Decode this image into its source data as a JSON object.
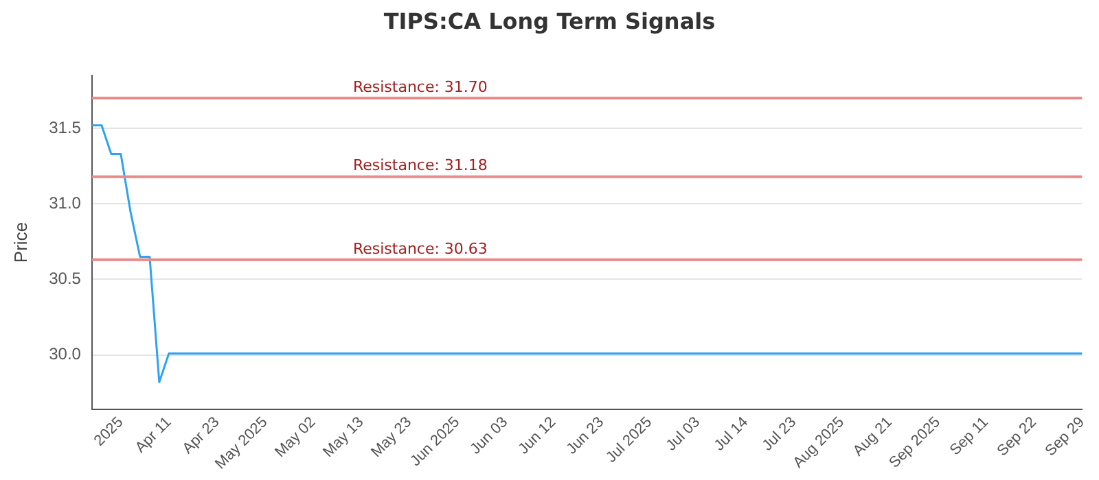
{
  "chart_data": {
    "type": "line",
    "title": "TIPS:CA Long Term Signals",
    "ylabel": "Price",
    "categories": [
      null,
      null,
      null,
      "2025",
      null,
      null,
      null,
      null,
      "Apr 11",
      null,
      null,
      null,
      null,
      "Apr 23",
      null,
      null,
      null,
      null,
      "May 2025",
      null,
      null,
      null,
      null,
      "May 02",
      null,
      null,
      null,
      null,
      "May 13",
      null,
      null,
      null,
      null,
      "May 23",
      null,
      null,
      null,
      null,
      "Jun 2025",
      null,
      null,
      null,
      null,
      "Jun 03",
      null,
      null,
      null,
      null,
      "Jun 12",
      null,
      null,
      null,
      null,
      "Jun 23",
      null,
      null,
      null,
      null,
      "Jul 2025",
      null,
      null,
      null,
      null,
      "Jul 03",
      null,
      null,
      null,
      null,
      "Jul 14",
      null,
      null,
      null,
      null,
      "Jul 23",
      null,
      null,
      null,
      null,
      "Aug 2025",
      null,
      null,
      null,
      null,
      "Aug 21",
      null,
      null,
      null,
      null,
      "Sep 2025",
      null,
      null,
      null,
      null,
      "Sep 11",
      null,
      null,
      null,
      null,
      "Sep 22",
      null,
      null,
      null,
      null,
      "Sep 29"
    ],
    "series": [
      {
        "color": "#2ea3f2",
        "values": [
          31.52,
          31.52,
          31.33,
          31.33,
          30.95,
          30.65,
          30.65,
          29.82,
          30.01,
          30.01,
          30.01,
          30.01,
          30.01,
          30.01,
          30.01,
          30.01,
          30.01,
          30.01,
          30.01,
          30.01,
          30.01,
          30.01,
          30.01,
          30.01,
          30.01,
          30.01,
          30.01,
          30.01,
          30.01,
          30.01,
          30.01,
          30.01,
          30.01,
          30.01,
          30.01,
          30.01,
          30.01,
          30.01,
          30.01,
          30.01,
          30.01,
          30.01,
          30.01,
          30.01,
          30.01,
          30.01,
          30.01,
          30.01,
          30.01,
          30.01,
          30.01,
          30.01,
          30.01,
          30.01,
          30.01,
          30.01,
          30.01,
          30.01,
          30.01,
          30.01,
          30.01,
          30.01,
          30.01,
          30.01,
          30.01,
          30.01,
          30.01,
          30.01,
          30.01,
          30.01,
          30.01,
          30.01,
          30.01,
          30.01,
          30.01,
          30.01,
          30.01,
          30.01,
          30.01,
          30.01,
          30.01,
          30.01,
          30.01,
          30.01,
          30.01,
          30.01,
          30.01,
          30.01,
          30.01,
          30.01,
          30.01,
          30.01,
          30.01,
          30.01,
          30.01,
          30.01,
          30.01,
          30.01,
          30.01,
          30.01,
          30.01,
          30.01,
          30.01,
          30.01
        ]
      }
    ],
    "ylim": [
      29.64,
      31.85
    ],
    "yticks": [
      {
        "value": 30,
        "label": "30.0"
      },
      30.5,
      {
        "value": 31,
        "label": "31.0"
      },
      31.5
    ],
    "grid": "y",
    "legend": false,
    "marker": "none",
    "line_style": "solid",
    "ref_lines": [
      {
        "axis": "y",
        "value": 31.7,
        "label": "Resistance: 31.70",
        "color": "#e88a8a"
      },
      {
        "axis": "y",
        "value": 31.18,
        "label": "Resistance: 31.18",
        "color": "#e88a8a"
      },
      {
        "axis": "y",
        "value": 30.63,
        "label": "Resistance: 30.63",
        "color": "#e88a8a"
      }
    ]
  }
}
